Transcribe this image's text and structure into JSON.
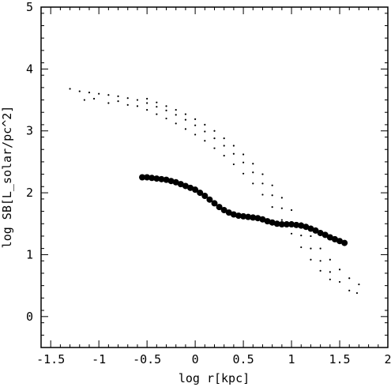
{
  "chart_data": {
    "type": "scatter",
    "title": "",
    "xlabel": "log r[kpc]",
    "ylabel": "log SB[L_solar/pc^2]",
    "xlim": [
      -1.6,
      2.0
    ],
    "ylim": [
      -0.5,
      5.0
    ],
    "xticks": [
      -1.5,
      -1,
      -0.5,
      0,
      0.5,
      1,
      1.5,
      2
    ],
    "xtick_labels": [
      "-1.5",
      "-1",
      "-0.5",
      "0",
      "0.5",
      "1",
      "1.5",
      "2"
    ],
    "yticks": [
      0,
      1,
      2,
      3,
      4,
      5
    ],
    "ytick_labels": [
      "0",
      "1",
      "2",
      "3",
      "4",
      "5"
    ],
    "grid": false,
    "series": [
      {
        "marker": "large-dot",
        "color": "#000000",
        "points": [
          [
            -0.55,
            2.25
          ],
          [
            -0.5,
            2.25
          ],
          [
            -0.45,
            2.24
          ],
          [
            -0.4,
            2.23
          ],
          [
            -0.35,
            2.22
          ],
          [
            -0.3,
            2.21
          ],
          [
            -0.25,
            2.19
          ],
          [
            -0.2,
            2.17
          ],
          [
            -0.15,
            2.14
          ],
          [
            -0.1,
            2.11
          ],
          [
            -0.05,
            2.08
          ],
          [
            0.0,
            2.05
          ],
          [
            0.05,
            2.0
          ],
          [
            0.1,
            1.95
          ],
          [
            0.15,
            1.89
          ],
          [
            0.2,
            1.83
          ],
          [
            0.25,
            1.77
          ],
          [
            0.3,
            1.72
          ],
          [
            0.35,
            1.68
          ],
          [
            0.4,
            1.65
          ],
          [
            0.45,
            1.63
          ],
          [
            0.5,
            1.62
          ],
          [
            0.55,
            1.61
          ],
          [
            0.6,
            1.6
          ],
          [
            0.65,
            1.59
          ],
          [
            0.7,
            1.57
          ],
          [
            0.75,
            1.54
          ],
          [
            0.8,
            1.52
          ],
          [
            0.85,
            1.5
          ],
          [
            0.9,
            1.49
          ],
          [
            0.95,
            1.49
          ],
          [
            1.0,
            1.49
          ],
          [
            1.05,
            1.48
          ],
          [
            1.1,
            1.47
          ],
          [
            1.15,
            1.45
          ],
          [
            1.2,
            1.42
          ],
          [
            1.25,
            1.39
          ],
          [
            1.3,
            1.35
          ],
          [
            1.35,
            1.32
          ],
          [
            1.4,
            1.28
          ],
          [
            1.45,
            1.25
          ],
          [
            1.5,
            1.22
          ],
          [
            1.55,
            1.19
          ]
        ]
      },
      {
        "marker": "small-dot",
        "color": "#000000",
        "points": [
          [
            -1.3,
            3.68
          ],
          [
            -1.2,
            3.64
          ],
          [
            -1.1,
            3.62
          ],
          [
            -1.0,
            3.6
          ],
          [
            -0.9,
            3.58
          ],
          [
            -0.8,
            3.56
          ],
          [
            -0.7,
            3.53
          ],
          [
            -0.6,
            3.5
          ],
          [
            -0.5,
            3.45
          ],
          [
            -0.4,
            3.39
          ],
          [
            -0.3,
            3.33
          ],
          [
            -0.2,
            3.26
          ],
          [
            -0.1,
            3.18
          ],
          [
            0.0,
            3.09
          ],
          [
            0.1,
            2.99
          ],
          [
            0.2,
            2.88
          ],
          [
            0.3,
            2.76
          ],
          [
            0.4,
            2.63
          ],
          [
            0.5,
            2.49
          ],
          [
            0.6,
            2.33
          ],
          [
            0.7,
            2.15
          ],
          [
            0.8,
            1.96
          ],
          [
            0.9,
            1.75
          ],
          [
            1.0,
            1.53
          ],
          [
            1.1,
            1.31
          ],
          [
            1.2,
            1.1
          ],
          [
            1.3,
            0.9
          ],
          [
            1.4,
            0.72
          ],
          [
            1.5,
            0.56
          ],
          [
            1.6,
            0.42
          ],
          [
            1.68,
            0.38
          ]
        ]
      },
      {
        "marker": "small-dot",
        "color": "#000000",
        "points": [
          [
            -1.15,
            3.5
          ],
          [
            -1.05,
            3.52
          ],
          [
            -0.9,
            3.45
          ],
          [
            -0.8,
            3.48
          ],
          [
            -0.7,
            3.42
          ],
          [
            -0.6,
            3.4
          ],
          [
            -0.5,
            3.34
          ],
          [
            -0.4,
            3.27
          ],
          [
            -0.3,
            3.2
          ],
          [
            -0.2,
            3.12
          ],
          [
            -0.1,
            3.03
          ],
          [
            0.0,
            2.94
          ],
          [
            0.1,
            2.84
          ],
          [
            0.2,
            2.72
          ],
          [
            0.3,
            2.6
          ],
          [
            0.4,
            2.46
          ],
          [
            0.5,
            2.31
          ],
          [
            0.6,
            2.15
          ],
          [
            0.7,
            1.97
          ],
          [
            0.8,
            1.77
          ],
          [
            0.9,
            1.56
          ],
          [
            1.0,
            1.34
          ],
          [
            1.1,
            1.12
          ],
          [
            1.2,
            0.92
          ],
          [
            1.3,
            0.74
          ],
          [
            1.4,
            0.6
          ]
        ]
      },
      {
        "marker": "small-dot",
        "color": "#000000",
        "points": [
          [
            -0.5,
            3.52
          ],
          [
            -0.4,
            3.46
          ],
          [
            -0.3,
            3.4
          ],
          [
            -0.2,
            3.34
          ],
          [
            -0.1,
            3.27
          ],
          [
            0.0,
            3.19
          ],
          [
            0.1,
            3.1
          ],
          [
            0.2,
            3.0
          ],
          [
            0.3,
            2.88
          ],
          [
            0.4,
            2.76
          ],
          [
            0.5,
            2.62
          ],
          [
            0.6,
            2.47
          ],
          [
            0.7,
            2.3
          ],
          [
            0.8,
            2.12
          ],
          [
            0.9,
            1.92
          ],
          [
            1.0,
            1.72
          ],
          [
            1.1,
            1.51
          ],
          [
            1.2,
            1.3
          ],
          [
            1.3,
            1.1
          ],
          [
            1.4,
            0.92
          ],
          [
            1.5,
            0.76
          ],
          [
            1.6,
            0.62
          ],
          [
            1.7,
            0.52
          ]
        ]
      }
    ]
  }
}
